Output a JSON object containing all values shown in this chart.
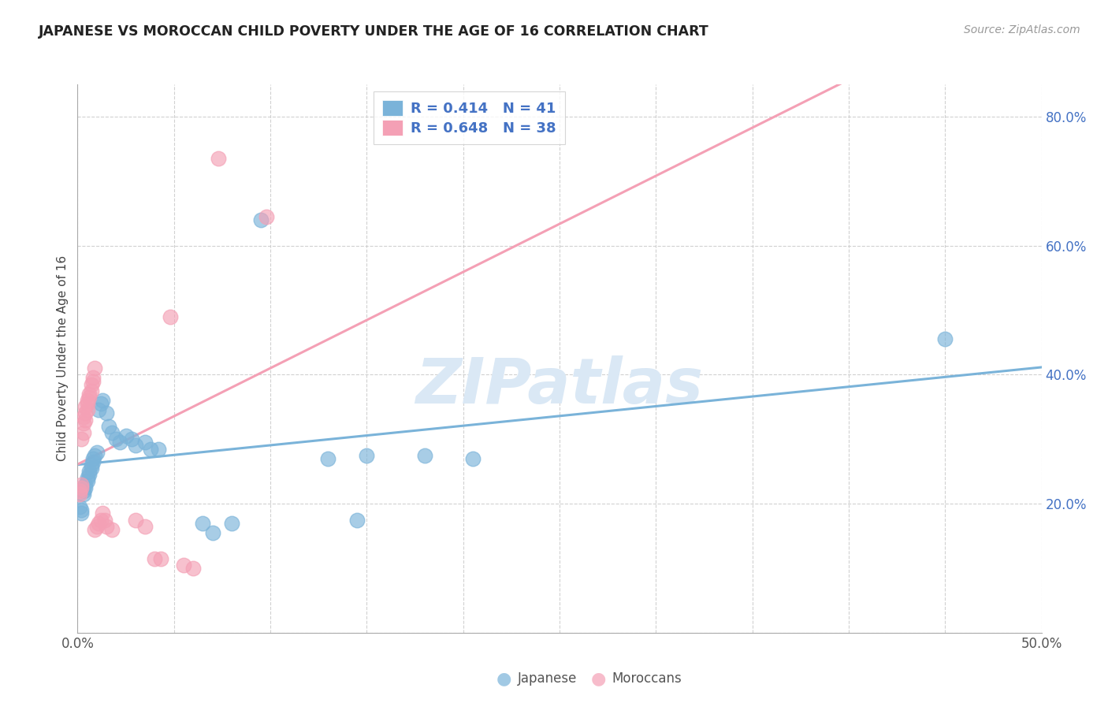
{
  "title": "JAPANESE VS MOROCCAN CHILD POVERTY UNDER THE AGE OF 16 CORRELATION CHART",
  "source": "Source: ZipAtlas.com",
  "ylabel": "Child Poverty Under the Age of 16",
  "xlim": [
    0.0,
    0.5
  ],
  "ylim": [
    0.0,
    0.85
  ],
  "japanese_color": "#7ab3d9",
  "moroccan_color": "#f4a0b5",
  "japanese_R": 0.414,
  "japanese_N": 41,
  "moroccan_R": 0.648,
  "moroccan_N": 38,
  "watermark_color": "#dae8f5",
  "background_color": "#ffffff",
  "grid_color": "#cccccc",
  "japanese_points": [
    [
      0.001,
      0.195
    ],
    [
      0.002,
      0.19
    ],
    [
      0.002,
      0.185
    ],
    [
      0.003,
      0.22
    ],
    [
      0.003,
      0.215
    ],
    [
      0.004,
      0.23
    ],
    [
      0.004,
      0.225
    ],
    [
      0.005,
      0.24
    ],
    [
      0.005,
      0.235
    ],
    [
      0.006,
      0.245
    ],
    [
      0.006,
      0.25
    ],
    [
      0.007,
      0.255
    ],
    [
      0.007,
      0.26
    ],
    [
      0.008,
      0.265
    ],
    [
      0.008,
      0.27
    ],
    [
      0.009,
      0.275
    ],
    [
      0.01,
      0.28
    ],
    [
      0.011,
      0.345
    ],
    [
      0.012,
      0.355
    ],
    [
      0.013,
      0.36
    ],
    [
      0.015,
      0.34
    ],
    [
      0.016,
      0.32
    ],
    [
      0.018,
      0.31
    ],
    [
      0.02,
      0.3
    ],
    [
      0.022,
      0.295
    ],
    [
      0.025,
      0.305
    ],
    [
      0.028,
      0.3
    ],
    [
      0.03,
      0.29
    ],
    [
      0.035,
      0.295
    ],
    [
      0.038,
      0.285
    ],
    [
      0.042,
      0.285
    ],
    [
      0.065,
      0.17
    ],
    [
      0.07,
      0.155
    ],
    [
      0.08,
      0.17
    ],
    [
      0.095,
      0.64
    ],
    [
      0.13,
      0.27
    ],
    [
      0.145,
      0.175
    ],
    [
      0.15,
      0.275
    ],
    [
      0.18,
      0.275
    ],
    [
      0.205,
      0.27
    ],
    [
      0.45,
      0.455
    ]
  ],
  "moroccan_points": [
    [
      0.001,
      0.215
    ],
    [
      0.001,
      0.22
    ],
    [
      0.002,
      0.225
    ],
    [
      0.002,
      0.23
    ],
    [
      0.002,
      0.3
    ],
    [
      0.003,
      0.31
    ],
    [
      0.003,
      0.325
    ],
    [
      0.003,
      0.335
    ],
    [
      0.004,
      0.33
    ],
    [
      0.004,
      0.34
    ],
    [
      0.004,
      0.35
    ],
    [
      0.005,
      0.345
    ],
    [
      0.005,
      0.355
    ],
    [
      0.005,
      0.36
    ],
    [
      0.006,
      0.365
    ],
    [
      0.006,
      0.37
    ],
    [
      0.007,
      0.375
    ],
    [
      0.007,
      0.385
    ],
    [
      0.008,
      0.39
    ],
    [
      0.008,
      0.395
    ],
    [
      0.009,
      0.41
    ],
    [
      0.009,
      0.16
    ],
    [
      0.01,
      0.165
    ],
    [
      0.011,
      0.17
    ],
    [
      0.012,
      0.175
    ],
    [
      0.013,
      0.185
    ],
    [
      0.014,
      0.175
    ],
    [
      0.015,
      0.165
    ],
    [
      0.018,
      0.16
    ],
    [
      0.03,
      0.175
    ],
    [
      0.035,
      0.165
    ],
    [
      0.04,
      0.115
    ],
    [
      0.043,
      0.115
    ],
    [
      0.048,
      0.49
    ],
    [
      0.055,
      0.105
    ],
    [
      0.06,
      0.1
    ],
    [
      0.073,
      0.735
    ],
    [
      0.098,
      0.645
    ]
  ]
}
